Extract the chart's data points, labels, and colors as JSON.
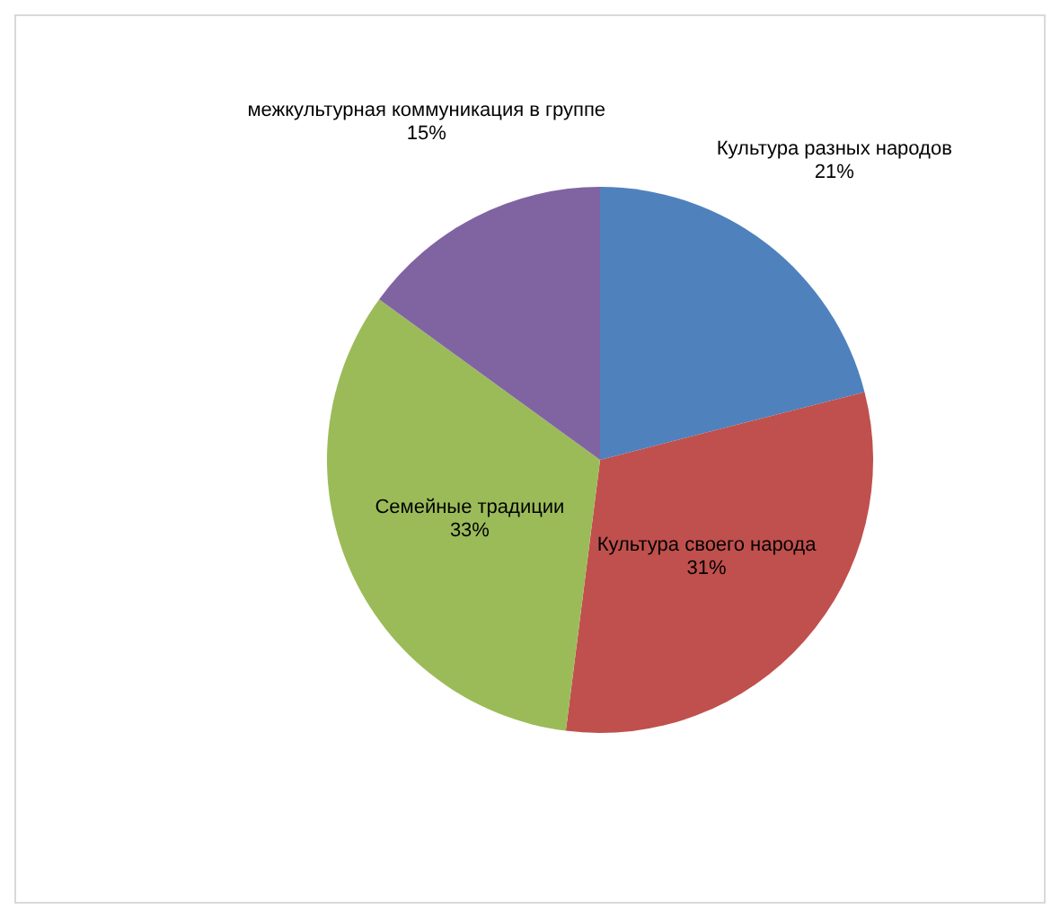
{
  "chart_data": {
    "type": "pie",
    "categories": [
      "Культура разных народов",
      "Культура своего народа",
      "Семейные традиции",
      "межкультурная коммуникация в группе"
    ],
    "values": [
      21,
      31,
      33,
      15
    ],
    "value_labels": [
      "21%",
      "31%",
      "33%",
      "15%"
    ],
    "colors": [
      "#4f81bd",
      "#c0504d",
      "#9bbb59",
      "#8064a2"
    ],
    "legend": false
  }
}
